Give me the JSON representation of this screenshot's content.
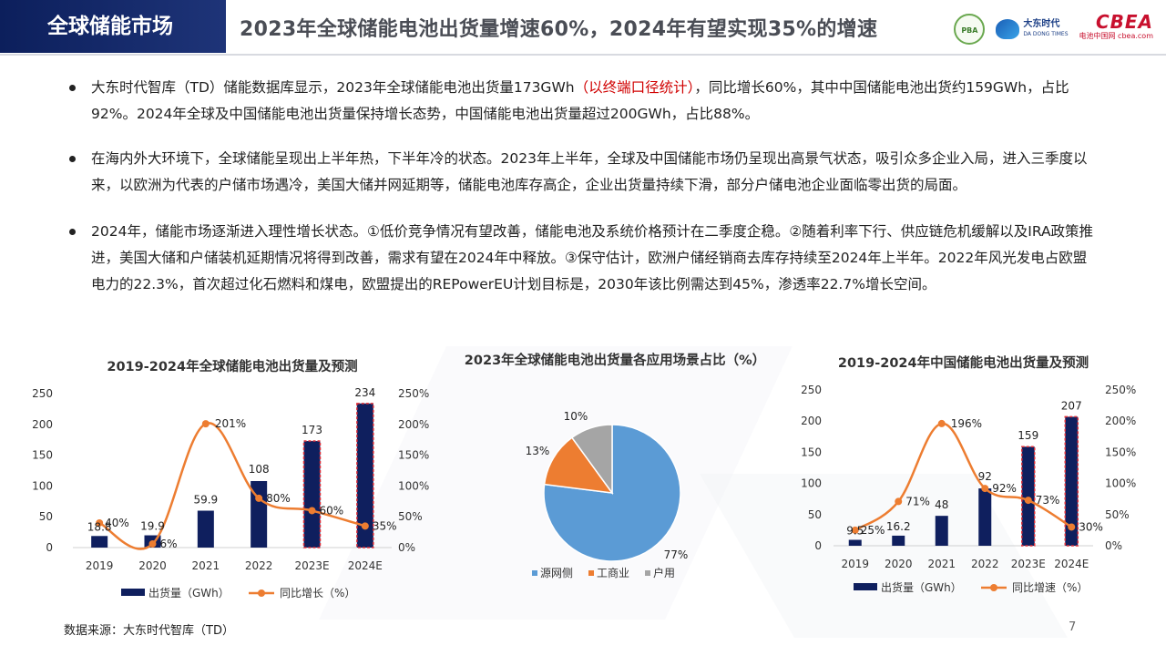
{
  "header": {
    "section": "全球储能市场",
    "title": "2023年全球储能电池出货量增速60%，2024年有望实现35%的增速",
    "logos": {
      "pba": "PBA",
      "td_cn": "大东时代",
      "td_en": "DA DONG TIMES",
      "cbea_main": "CBEA",
      "cbea_sub": "电池中国网 cbea.com"
    }
  },
  "bullets": [
    {
      "before": "大东时代智库（TD）储能数据库显示，2023年全球储能电池出货量173GWh",
      "highlight": "（以终端口径统计）",
      "after": "，同比增长60%，其中中国储能电池出货约159GWh，占比92%。2024年全球及中国储能电池出货量保持增长态势，中国储能电池出货量超过200GWh，占比88%。"
    },
    {
      "text": "在海内外大环境下，全球储能呈现出上半年热，下半年冷的状态。2023年上半年，全球及中国储能市场仍呈现出高景气状态，吸引众多企业入局，进入三季度以来，以欧洲为代表的户储市场遇冷，美国大储并网延期等，储能电池库存高企，企业出货量持续下滑，部分户储电池企业面临零出货的局面。"
    },
    {
      "text": "2024年，储能市场逐渐进入理性增长状态。①低价竞争情况有望改善，储能电池及系统价格预计在二季度企稳。②随着利率下行、供应链危机缓解以及IRA政策推进，美国大储和户储装机延期情况将得到改善，需求有望在2024年中释放。③保守估计，欧洲户储经销商去库存持续至2024年上半年。2022年风光发电占欧盟电力的22.3%，首次超过化石燃料和煤电，欧盟提出的REPowerEU计划目标是，2030年该比例需达到45%，渗透率22.7%增长空间。"
    }
  ],
  "chart_data": [
    {
      "type": "bar",
      "title": "2019-2024年全球储能电池出货量及预测",
      "categories": [
        "2019",
        "2020",
        "2021",
        "2022",
        "2023E",
        "2024E"
      ],
      "series": [
        {
          "name": "出货量（GWh）",
          "kind": "bar",
          "axis": "left",
          "values": [
            18.8,
            19.9,
            59.9,
            108,
            173,
            234
          ],
          "labels": [
            "18.8",
            "19.9",
            "59.9",
            "108",
            "173",
            "234"
          ],
          "color": "#0f1f5e"
        },
        {
          "name": "同比增长（%）",
          "kind": "line",
          "axis": "right",
          "values": [
            40,
            6,
            201,
            80,
            60,
            35
          ],
          "labels": [
            "40%",
            "6%",
            "201%",
            "80%",
            "60%",
            "35%"
          ],
          "color": "#ed7d31"
        }
      ],
      "highlighted": [
        4,
        5
      ],
      "y_left": {
        "min": 0,
        "max": 250,
        "ticks": [
          0,
          50,
          100,
          150,
          200,
          250
        ]
      },
      "y_right": {
        "min": 0,
        "max": 250,
        "ticks": [
          "0%",
          "50%",
          "100%",
          "150%",
          "200%",
          "250%"
        ]
      },
      "legend_position": "bottom"
    },
    {
      "type": "pie",
      "title": "2023年全球储能电池出货量各应用场景占比（%）",
      "series": [
        {
          "name": "源网侧",
          "value": 77,
          "label": "77%",
          "color": "#5b9bd5"
        },
        {
          "name": "工商业",
          "value": 13,
          "label": "13%",
          "color": "#ed7d31"
        },
        {
          "name": "户用",
          "value": 10,
          "label": "10%",
          "color": "#a5a5a5"
        }
      ],
      "legend_position": "bottom"
    },
    {
      "type": "bar",
      "title": "2019-2024年中国储能电池出货量及预测",
      "categories": [
        "2019",
        "2020",
        "2021",
        "2022",
        "2023E",
        "2024E"
      ],
      "series": [
        {
          "name": "出货量（GWh）",
          "kind": "bar",
          "axis": "left",
          "values": [
            9.5,
            16.2,
            48,
            92,
            159,
            207
          ],
          "labels": [
            "9.5",
            "16.2",
            "48",
            "92",
            "159",
            "207"
          ],
          "color": "#0f1f5e"
        },
        {
          "name": "同比增速（%）",
          "kind": "line",
          "axis": "right",
          "values": [
            25,
            71,
            196,
            92,
            73,
            30
          ],
          "labels": [
            "25%",
            "71%",
            "196%",
            "92%",
            "73%",
            "30%"
          ],
          "color": "#ed7d31"
        }
      ],
      "highlighted": [
        4,
        5
      ],
      "y_left": {
        "min": 0,
        "max": 250,
        "ticks": [
          0,
          50,
          100,
          150,
          200,
          250
        ]
      },
      "y_right": {
        "min": 0,
        "max": 250,
        "ticks": [
          "0%",
          "50%",
          "100%",
          "150%",
          "200%",
          "250%"
        ]
      },
      "legend_position": "bottom"
    }
  ],
  "footer": {
    "source": "数据来源：大东时代智库（TD）",
    "page": "7"
  }
}
